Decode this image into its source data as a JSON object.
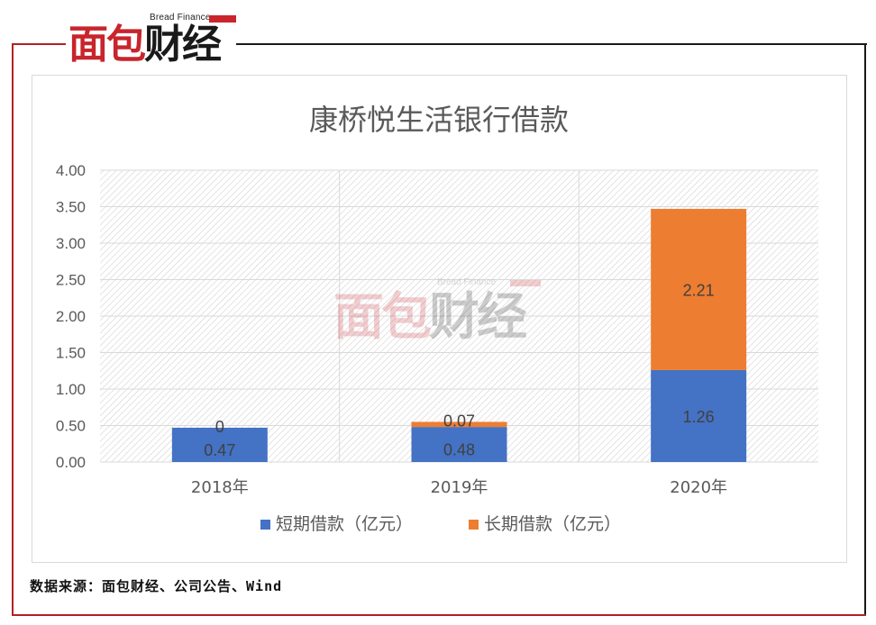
{
  "logo": {
    "text_red": "面包",
    "text_dark": "财经",
    "subtitle": "Bread Finance"
  },
  "watermark": {
    "text_red": "面包",
    "text_dark": "财经",
    "subtitle": "Bread Finance"
  },
  "source_note": "数据来源：面包财经、公司公告、Wind",
  "colors": {
    "short_term": "#4472c4",
    "long_term": "#ed7d31",
    "frame_red": "#b52025"
  },
  "chart_data": {
    "type": "bar",
    "stacked": true,
    "title": "康桥悦生活银行借款",
    "categories": [
      "2018年",
      "2019年",
      "2020年"
    ],
    "series": [
      {
        "name": "短期借款（亿元）",
        "values": [
          0.47,
          0.48,
          1.26
        ],
        "labels": [
          "0.47",
          "0.48",
          "1.26"
        ]
      },
      {
        "name": "长期借款（亿元）",
        "values": [
          0,
          0.07,
          2.21
        ],
        "labels": [
          "0",
          "0.07",
          "2.21"
        ]
      }
    ],
    "ylim": [
      0,
      4.0
    ],
    "yticks": [
      "0.00",
      "0.50",
      "1.00",
      "1.50",
      "2.00",
      "2.50",
      "3.00",
      "3.50",
      "4.00"
    ],
    "xlabel": "",
    "ylabel": "",
    "grid": true,
    "legend_position": "bottom"
  }
}
